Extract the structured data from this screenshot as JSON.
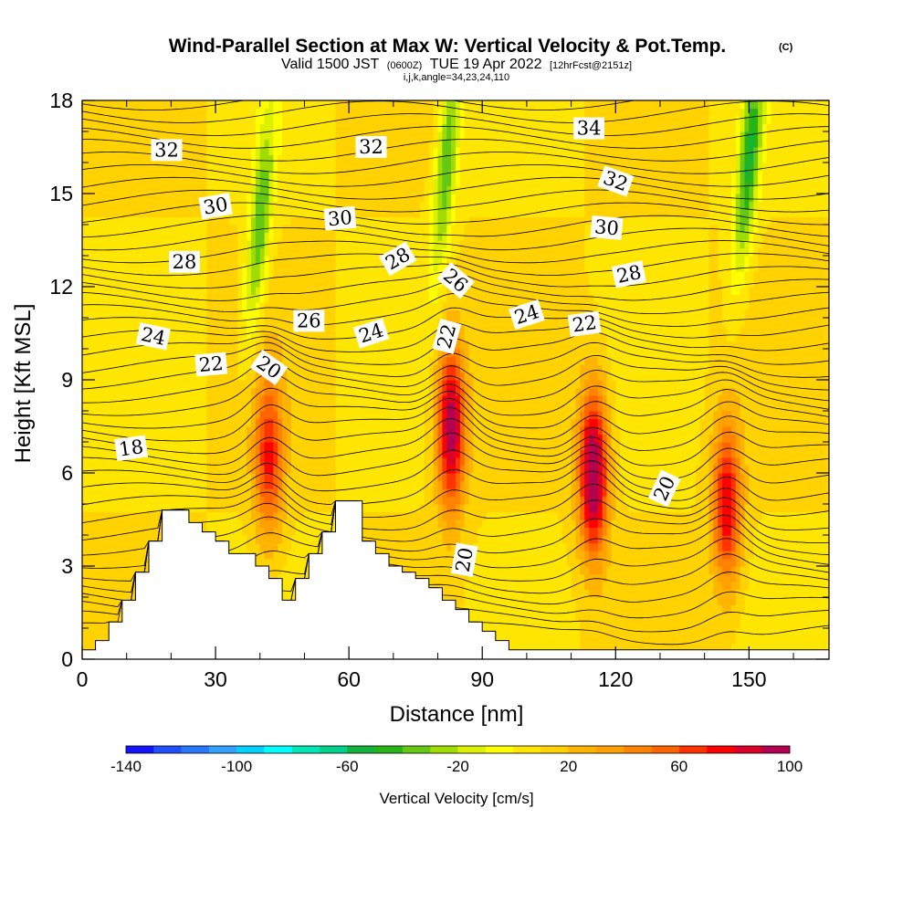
{
  "chart_data": {
    "type": "heatmap",
    "title": "Wind-Parallel Section at Max W: Vertical Velocity & Pot.Temp.",
    "title_mark": "(C)",
    "subtitle": {
      "valid": "Valid 1500 JST",
      "utc": "(0600Z)",
      "date": "TUE 19 Apr 2022",
      "forecast": "[12hrFcst@2151z]"
    },
    "indices": "i,j,k,angle=34,23,24,110",
    "xlabel": "Distance [nm]",
    "ylabel": "Height [Kft MSL]",
    "xlim": [
      0,
      168
    ],
    "ylim": [
      0,
      18
    ],
    "x_ticks": [
      0,
      30,
      60,
      90,
      120,
      150
    ],
    "y_ticks": [
      0,
      3,
      6,
      9,
      12,
      15,
      18
    ],
    "colorbar": {
      "label": "Vertical Velocity [cm/s]",
      "min": -140,
      "max": 100,
      "step": 10,
      "tick_labels": [
        -140,
        -100,
        -60,
        -20,
        20,
        60,
        100
      ],
      "colors": [
        "#1414ff",
        "#1e50ff",
        "#2878ff",
        "#32a0ff",
        "#00d2ff",
        "#00ffff",
        "#00e6b4",
        "#00d28c",
        "#14b43c",
        "#28b414",
        "#64c814",
        "#a0dc00",
        "#dcf000",
        "#ffff00",
        "#ffe600",
        "#ffd200",
        "#ffb400",
        "#ffa000",
        "#ff8200",
        "#ff6400",
        "#ff3200",
        "#ff0000",
        "#dc0028",
        "#b40050"
      ]
    },
    "updrafts": [
      {
        "x": 42,
        "z": 6.5,
        "peak_w": 60
      },
      {
        "x": 83,
        "z": 7.5,
        "peak_w": 90
      },
      {
        "x": 115,
        "z": 6.0,
        "peak_w": 100
      },
      {
        "x": 145,
        "z": 5.0,
        "peak_w": 70
      }
    ],
    "downdrafts": [
      {
        "x": 40,
        "z": 14,
        "peak_w": -50
      },
      {
        "x": 82,
        "z": 16,
        "peak_w": -50
      },
      {
        "x": 150,
        "z": 16,
        "peak_w": -60
      }
    ],
    "terrain": [
      {
        "x": 0,
        "z": 0.3
      },
      {
        "x": 3,
        "z": 0.6
      },
      {
        "x": 6,
        "z": 1.2
      },
      {
        "x": 9,
        "z": 1.9
      },
      {
        "x": 12,
        "z": 2.8
      },
      {
        "x": 15,
        "z": 3.8
      },
      {
        "x": 18,
        "z": 4.8
      },
      {
        "x": 21,
        "z": 4.8
      },
      {
        "x": 24,
        "z": 4.4
      },
      {
        "x": 27,
        "z": 4.1
      },
      {
        "x": 30,
        "z": 3.8
      },
      {
        "x": 33,
        "z": 3.4
      },
      {
        "x": 36,
        "z": 3.4
      },
      {
        "x": 39,
        "z": 3.0
      },
      {
        "x": 42,
        "z": 2.6
      },
      {
        "x": 45,
        "z": 1.9
      },
      {
        "x": 48,
        "z": 2.6
      },
      {
        "x": 51,
        "z": 3.4
      },
      {
        "x": 54,
        "z": 4.1
      },
      {
        "x": 57,
        "z": 5.1
      },
      {
        "x": 60,
        "z": 5.1
      },
      {
        "x": 63,
        "z": 3.8
      },
      {
        "x": 66,
        "z": 3.4
      },
      {
        "x": 69,
        "z": 3.0
      },
      {
        "x": 72,
        "z": 2.8
      },
      {
        "x": 75,
        "z": 2.6
      },
      {
        "x": 78,
        "z": 2.3
      },
      {
        "x": 81,
        "z": 1.9
      },
      {
        "x": 84,
        "z": 1.6
      },
      {
        "x": 87,
        "z": 1.2
      },
      {
        "x": 90,
        "z": 0.9
      },
      {
        "x": 93,
        "z": 0.6
      },
      {
        "x": 96,
        "z": 0.3
      },
      {
        "x": 168,
        "z": 0.3
      }
    ],
    "contour_labels": [
      {
        "text": "18",
        "x": 11,
        "z": 6.8,
        "rot": -8
      },
      {
        "text": "20",
        "x": 42,
        "z": 9.4,
        "rot": 35
      },
      {
        "text": "20",
        "x": 86,
        "z": 3.2,
        "rot": -80
      },
      {
        "text": "20",
        "x": 131,
        "z": 5.5,
        "rot": -65
      },
      {
        "text": "22",
        "x": 29,
        "z": 9.5,
        "rot": -5
      },
      {
        "text": "22",
        "x": 82,
        "z": 10.4,
        "rot": -75
      },
      {
        "text": "22",
        "x": 113,
        "z": 10.8,
        "rot": -8
      },
      {
        "text": "24",
        "x": 16,
        "z": 10.4,
        "rot": 12
      },
      {
        "text": "24",
        "x": 65,
        "z": 10.5,
        "rot": -18
      },
      {
        "text": "24",
        "x": 100,
        "z": 11.1,
        "rot": -18
      },
      {
        "text": "26",
        "x": 51,
        "z": 10.9,
        "rot": 0
      },
      {
        "text": "26",
        "x": 84,
        "z": 12.2,
        "rot": 40
      },
      {
        "text": "28",
        "x": 23,
        "z": 12.8,
        "rot": 0
      },
      {
        "text": "28",
        "x": 71,
        "z": 12.9,
        "rot": -30
      },
      {
        "text": "28",
        "x": 123,
        "z": 12.4,
        "rot": -12
      },
      {
        "text": "30",
        "x": 30,
        "z": 14.6,
        "rot": -10
      },
      {
        "text": "30",
        "x": 58,
        "z": 14.2,
        "rot": -5
      },
      {
        "text": "30",
        "x": 118,
        "z": 13.9,
        "rot": 5
      },
      {
        "text": "32",
        "x": 19,
        "z": 16.4,
        "rot": 0
      },
      {
        "text": "32",
        "x": 65,
        "z": 16.5,
        "rot": 0
      },
      {
        "text": "32",
        "x": 120,
        "z": 15.4,
        "rot": 20
      },
      {
        "text": "34",
        "x": 114,
        "z": 17.1,
        "rot": 0
      }
    ]
  }
}
